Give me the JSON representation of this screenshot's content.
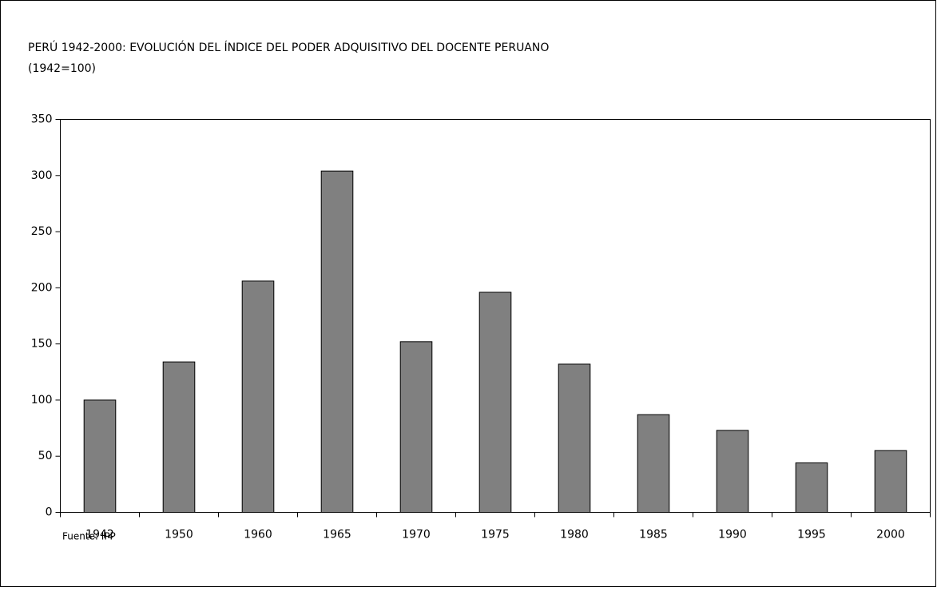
{
  "chart_data": {
    "type": "bar",
    "title": "PERÚ 1942-2000: EVOLUCIÓN DEL ÍNDICE DEL PODER ADQUISITIVO DEL DOCENTE PERUANO",
    "subtitle": "(1942=100)",
    "source": "Fuente: IPP",
    "categories": [
      "1942",
      "1950",
      "1960",
      "1965",
      "1970",
      "1975",
      "1980",
      "1985",
      "1990",
      "1995",
      "2000"
    ],
    "values": [
      100,
      134,
      206,
      304,
      152,
      196,
      132,
      87,
      73,
      44,
      55
    ],
    "color": "#808080",
    "ylim": [
      0,
      350
    ],
    "yticks": [
      0,
      50,
      100,
      150,
      200,
      250,
      300,
      350
    ],
    "grid": false
  }
}
